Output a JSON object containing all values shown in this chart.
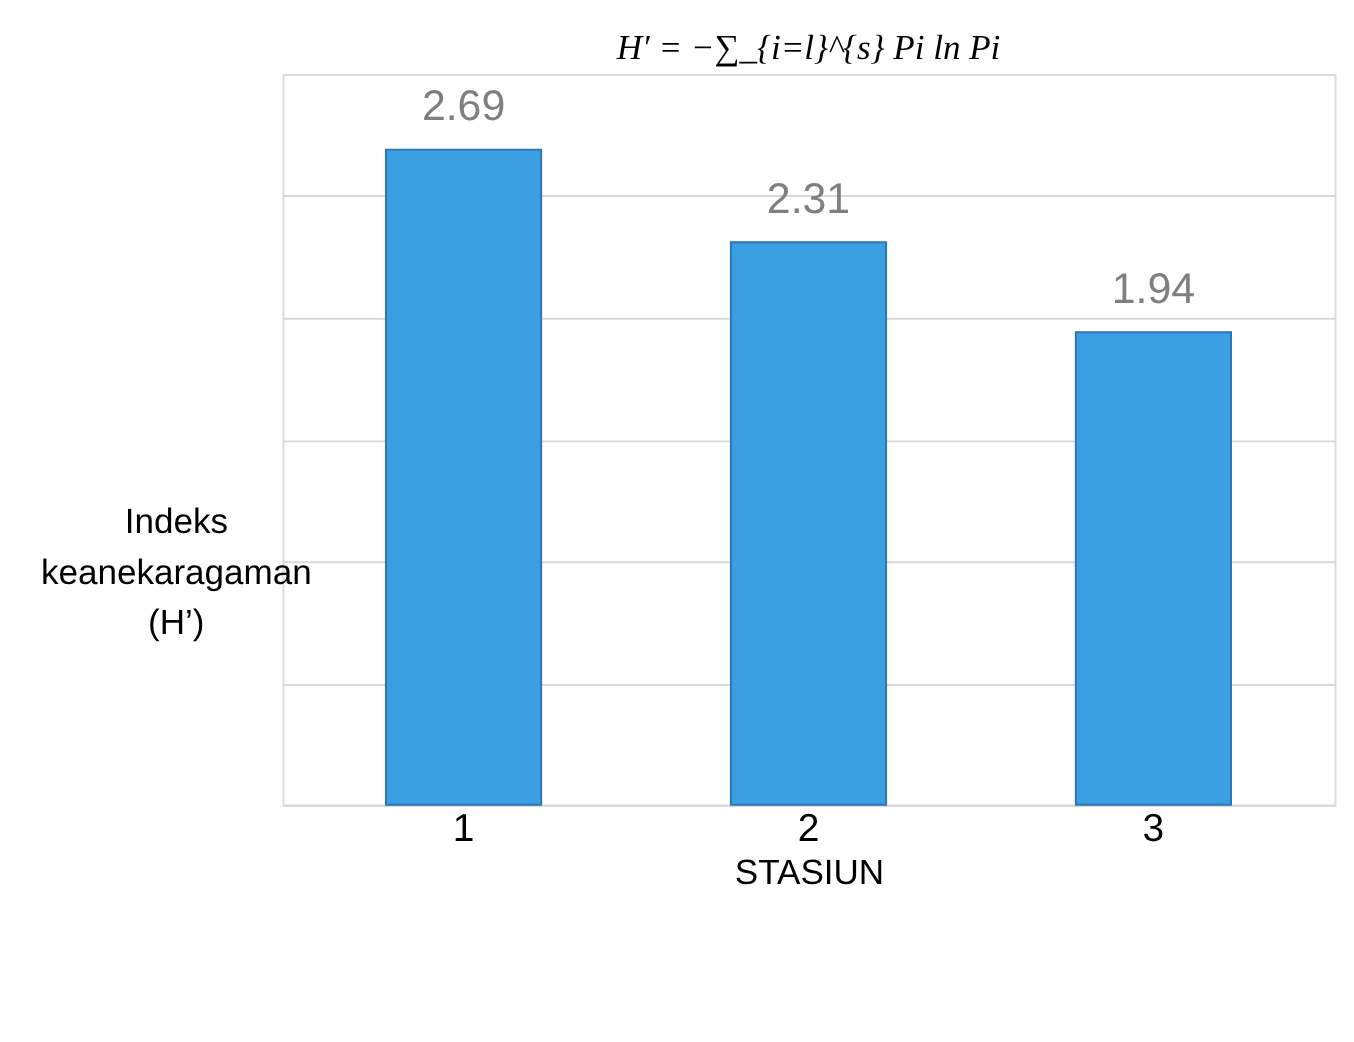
{
  "chart_data": {
    "type": "bar",
    "title": "H′ = −∑_{i=l}^{s} Pi ln Pi",
    "xlabel": "STASIUN",
    "ylabel": "Indeks keanekaragaman (H’)",
    "categories": [
      "1",
      "2",
      "3"
    ],
    "values": [
      2.69,
      2.31,
      1.94
    ],
    "color": "#3a9fe3",
    "ylim": [
      0,
      3
    ],
    "yticks": [
      {
        "value": 0,
        "label": null
      },
      {
        "value": 0.5,
        "label": null
      },
      {
        "value": 1,
        "label": null
      },
      {
        "value": 1.5,
        "label": null
      },
      {
        "value": 2,
        "label": null
      },
      {
        "value": 2.5,
        "label": null
      },
      {
        "value": 3,
        "label": null
      }
    ],
    "grid": "y",
    "tick_labels": "x",
    "data_labels": true
  }
}
